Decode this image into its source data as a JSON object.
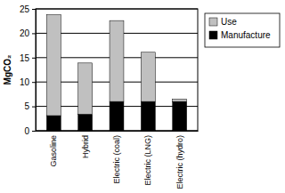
{
  "chart_data": {
    "type": "bar",
    "stacked": true,
    "grid": true,
    "legend": "right",
    "y_label": "MgCO₂",
    "categories": [
      "Gasoline",
      "Hybrid",
      "Electric (coal)",
      "Electric (LNG)",
      "Electric (hydro)"
    ],
    "series": [
      {
        "name": "Manufacture",
        "color": "#000000",
        "values": [
          3.1,
          3.4,
          6.0,
          6.0,
          6.0
        ]
      },
      {
        "name": "Use",
        "color": "#c0c0c0",
        "values": [
          20.7,
          10.5,
          16.6,
          10.1,
          0.5
        ]
      }
    ],
    "ylim": [
      0,
      25
    ],
    "yticks": [
      0,
      5,
      10,
      15,
      20,
      25
    ]
  }
}
